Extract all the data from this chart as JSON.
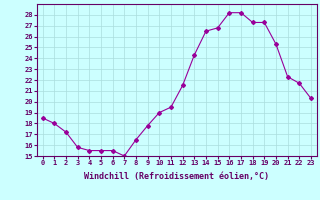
{
  "x": [
    0,
    1,
    2,
    3,
    4,
    5,
    6,
    7,
    8,
    9,
    10,
    11,
    12,
    13,
    14,
    15,
    16,
    17,
    18,
    19,
    20,
    21,
    22,
    23
  ],
  "y": [
    18.5,
    18.0,
    17.2,
    15.8,
    15.5,
    15.5,
    15.5,
    15.0,
    16.5,
    17.8,
    19.0,
    19.5,
    21.5,
    24.3,
    26.5,
    26.8,
    28.2,
    28.2,
    27.3,
    27.3,
    25.3,
    22.3,
    21.7,
    20.3
  ],
  "ylim": [
    15,
    29
  ],
  "yticks": [
    15,
    16,
    17,
    18,
    19,
    20,
    21,
    22,
    23,
    24,
    25,
    26,
    27,
    28
  ],
  "xticks": [
    0,
    1,
    2,
    3,
    4,
    5,
    6,
    7,
    8,
    9,
    10,
    11,
    12,
    13,
    14,
    15,
    16,
    17,
    18,
    19,
    20,
    21,
    22,
    23
  ],
  "xlabel": "Windchill (Refroidissement éolien,°C)",
  "line_color": "#990099",
  "marker": "D",
  "marker_size": 2,
  "bg_color": "#ccffff",
  "grid_color": "#aadddd",
  "label_color": "#660066"
}
